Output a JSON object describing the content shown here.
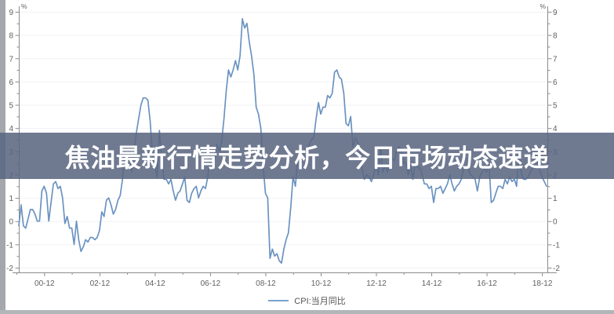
{
  "banner": {
    "title": "焦油最新行情走势分析，今日市场动态速递",
    "bg_color": "#5a6681",
    "text_color": "#ffffff"
  },
  "chart_data": {
    "type": "line",
    "title": "",
    "unit_label": "%",
    "grid": true,
    "legend_position": "bottom-center",
    "ylim": [
      -2,
      9
    ],
    "y_ticks": [
      -2,
      -1,
      0,
      1,
      2,
      3,
      4,
      5,
      6,
      7,
      8,
      9
    ],
    "y_minor_step": 0.5,
    "x_start": "2000-01",
    "x_end": "2019-02",
    "x_tick_labels": [
      "00-12",
      "02-12",
      "04-12",
      "06-12",
      "08-12",
      "10-12",
      "12-12",
      "14-12",
      "16-12",
      "18-12"
    ],
    "line_color": "#6b93c1",
    "axis_color": "#8c8c8c",
    "grid_color": "#f1f2f4",
    "series": [
      {
        "name": "CPI:当月同比",
        "color": "#6b93c1",
        "values": [
          -0.2,
          0.7,
          -0.2,
          -0.3,
          0.1,
          0.5,
          0.5,
          0.3,
          0.0,
          0.0,
          1.3,
          1.5,
          1.2,
          0.0,
          0.8,
          1.6,
          1.7,
          1.4,
          1.5,
          1.0,
          -0.1,
          0.2,
          -0.3,
          -0.3,
          -1.0,
          0.0,
          -0.8,
          -1.3,
          -1.1,
          -0.8,
          -0.9,
          -0.7,
          -0.7,
          -0.8,
          -0.7,
          -0.4,
          0.4,
          0.2,
          0.9,
          1.0,
          0.7,
          0.3,
          0.5,
          0.9,
          1.1,
          1.8,
          3.0,
          3.2,
          3.2,
          2.1,
          3.0,
          3.8,
          4.4,
          5.0,
          5.3,
          5.3,
          5.2,
          4.3,
          2.8,
          2.4,
          1.9,
          3.9,
          2.7,
          1.8,
          1.8,
          1.6,
          1.8,
          1.3,
          0.9,
          1.2,
          1.3,
          1.6,
          1.9,
          0.9,
          0.8,
          1.2,
          1.4,
          1.5,
          1.0,
          1.3,
          1.5,
          1.4,
          1.9,
          2.8,
          2.2,
          2.7,
          3.3,
          3.0,
          3.4,
          4.4,
          5.6,
          6.5,
          6.2,
          6.5,
          6.9,
          6.5,
          7.1,
          8.7,
          8.3,
          8.5,
          7.7,
          7.1,
          6.3,
          4.9,
          4.6,
          4.0,
          2.4,
          1.2,
          1.0,
          -1.6,
          -1.2,
          -1.5,
          -1.4,
          -1.7,
          -1.8,
          -1.2,
          -0.8,
          -0.5,
          0.6,
          1.9,
          1.5,
          2.7,
          2.4,
          2.8,
          3.1,
          2.9,
          3.3,
          3.5,
          3.6,
          4.4,
          5.1,
          4.6,
          4.9,
          4.9,
          5.4,
          5.3,
          5.5,
          6.4,
          6.5,
          6.2,
          6.1,
          5.5,
          4.2,
          4.1,
          4.5,
          3.2,
          3.6,
          3.4,
          3.0,
          2.2,
          1.8,
          2.0,
          1.9,
          1.7,
          2.0,
          2.5,
          2.0,
          3.2,
          2.1,
          2.4,
          2.1,
          2.7,
          2.7,
          2.6,
          3.1,
          3.2,
          3.0,
          2.5,
          2.5,
          2.0,
          2.4,
          1.8,
          2.5,
          2.3,
          2.3,
          2.0,
          1.6,
          1.6,
          1.4,
          1.5,
          0.8,
          1.4,
          1.4,
          1.5,
          1.2,
          1.4,
          1.6,
          2.0,
          1.6,
          1.3,
          1.5,
          1.6,
          1.8,
          2.3,
          2.3,
          2.3,
          2.0,
          1.9,
          1.8,
          1.3,
          1.9,
          2.1,
          2.3,
          2.1,
          2.5,
          0.8,
          0.9,
          1.2,
          1.5,
          1.5,
          1.4,
          1.8,
          1.6,
          1.9,
          1.7,
          1.8,
          1.5,
          2.9,
          2.1,
          1.8,
          1.8,
          1.9,
          2.1,
          2.3,
          2.5,
          2.5,
          2.2,
          1.9,
          1.7,
          1.5
        ]
      }
    ]
  }
}
